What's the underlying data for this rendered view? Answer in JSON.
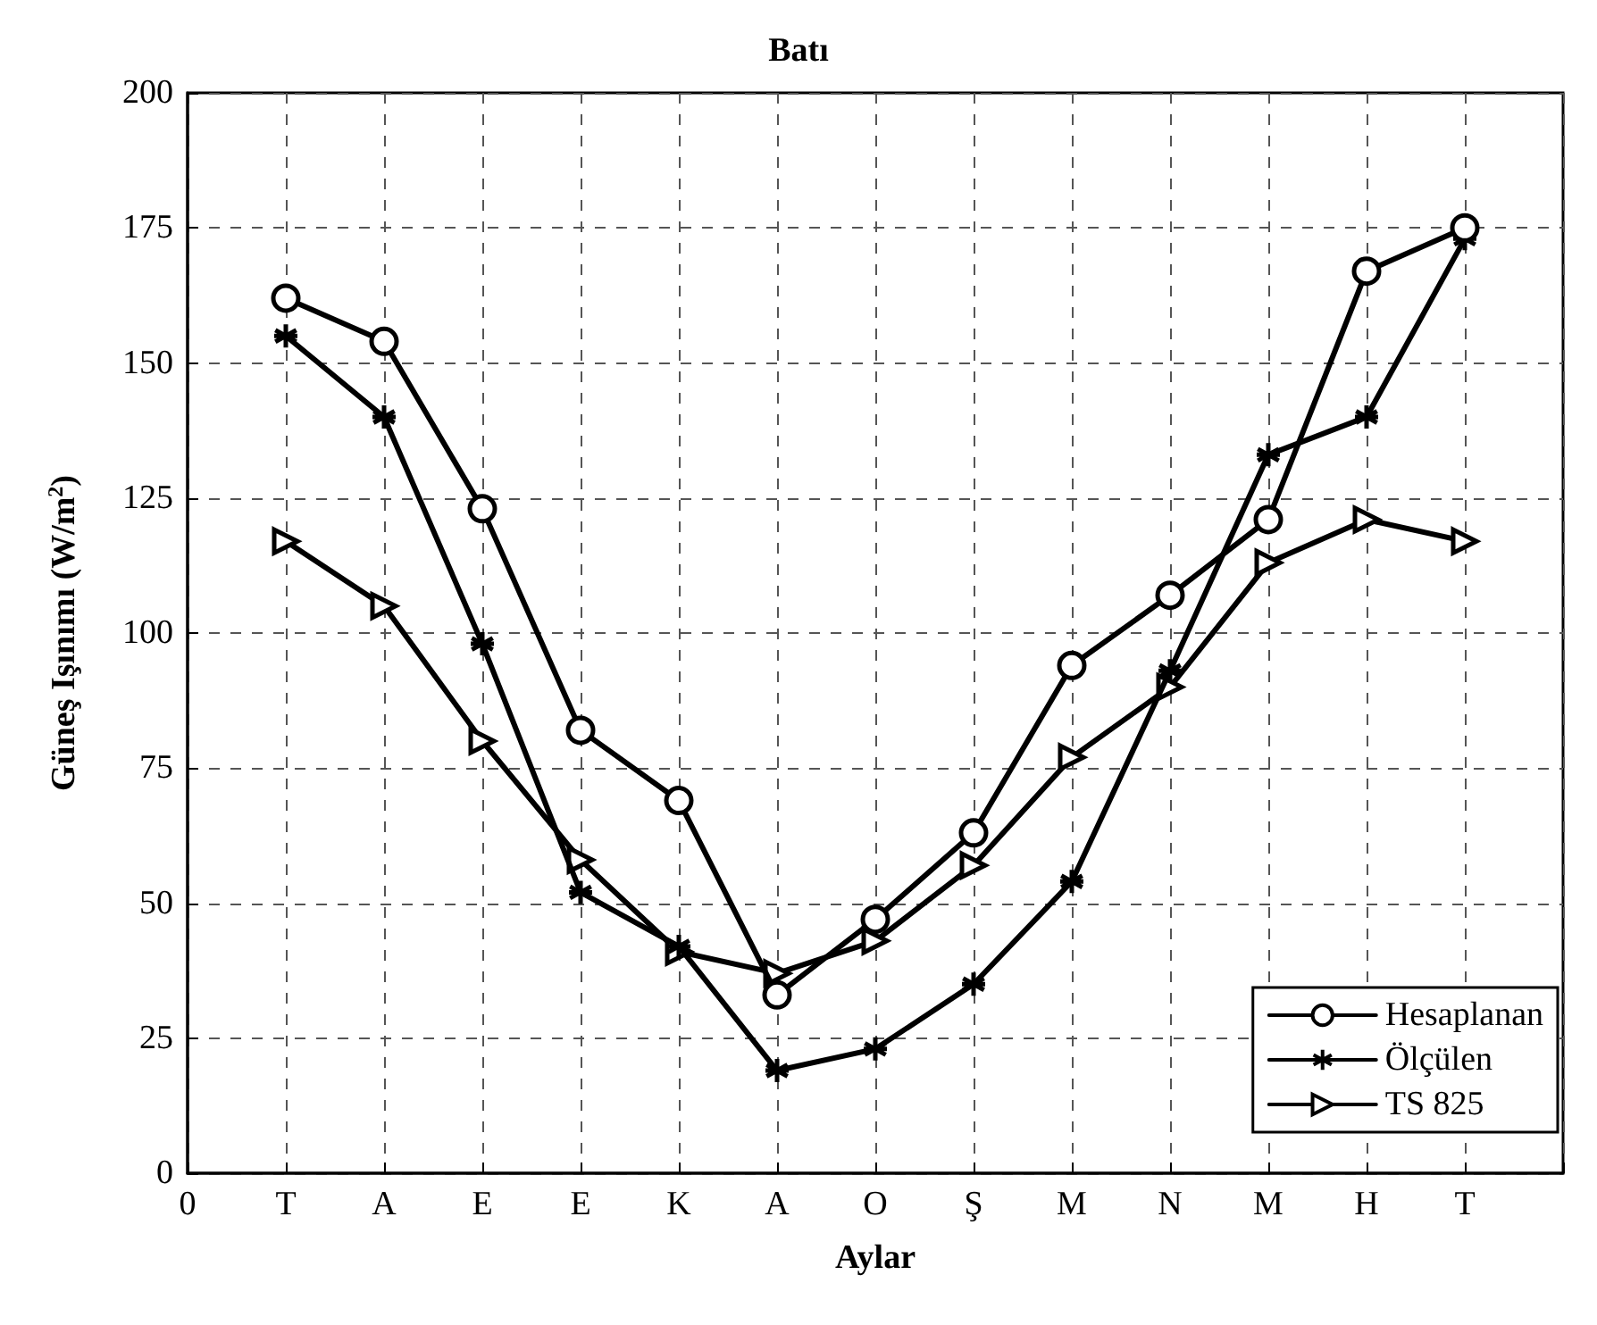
{
  "chart_data": {
    "type": "line",
    "title": "Batı",
    "xlabel": "Aylar",
    "ylabel": "Güneş Işınımı (W/m$^{2}$)",
    "categories": [
      "0",
      "T",
      "A",
      "E",
      "E",
      "K",
      "A",
      "O",
      "Ş",
      "M",
      "N",
      "M",
      "H",
      "T",
      null
    ],
    "ylim": [
      0,
      200
    ],
    "yticks": [
      0,
      25,
      50,
      75,
      100,
      125,
      150,
      175,
      200
    ],
    "series": [
      {
        "name": "Hesaplanan",
        "color": "#000000",
        "marker": "circle",
        "values": [
          null,
          162,
          154,
          123,
          82,
          69,
          33,
          47,
          63,
          94,
          107,
          121,
          167,
          175,
          null
        ]
      },
      {
        "name": "Ölçülen",
        "color": "#000000",
        "marker": "cross",
        "values": [
          null,
          155,
          140,
          98,
          52,
          42,
          19,
          23,
          35,
          54,
          93,
          133,
          140,
          173,
          null
        ]
      },
      {
        "name": "TS 825",
        "color": "#000000",
        "marker": "triangle",
        "values": [
          null,
          117,
          105,
          80,
          58,
          41,
          37,
          43,
          57,
          77,
          90,
          113,
          121,
          117,
          null
        ]
      }
    ],
    "grid": true,
    "legend": "bottom right",
    "line_style": "solid"
  }
}
